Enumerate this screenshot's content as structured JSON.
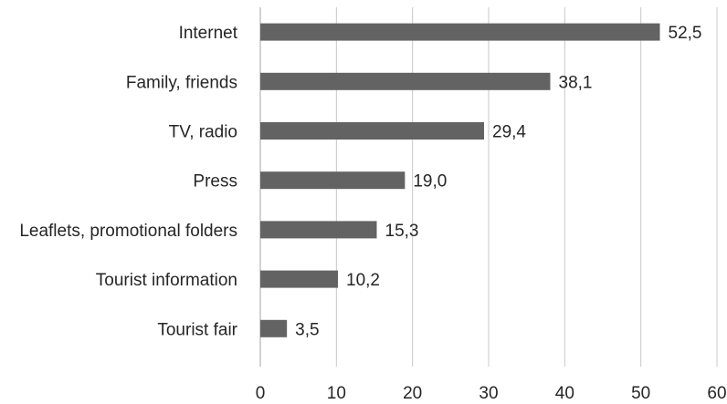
{
  "chart_data": {
    "type": "bar",
    "orientation": "horizontal",
    "categories": [
      "Internet",
      "Family, friends",
      "TV, radio",
      "Press",
      "Leaflets, promotional folders",
      "Tourist information",
      "Tourist fair"
    ],
    "values": [
      52.5,
      38.1,
      29.4,
      19.0,
      15.3,
      10.2,
      3.5
    ],
    "value_labels": [
      "52,5",
      "38,1",
      "29,4",
      "19,0",
      "15,3",
      "10,2",
      "3,5"
    ],
    "xlim": [
      0,
      60
    ],
    "x_ticks": [
      0,
      10,
      20,
      30,
      40,
      50,
      60
    ],
    "x_tick_labels": [
      "0",
      "10",
      "20",
      "30",
      "40",
      "50",
      "60"
    ],
    "grid": "vertical",
    "bar_color": "#636363",
    "grid_color": "#c8c8c8"
  }
}
